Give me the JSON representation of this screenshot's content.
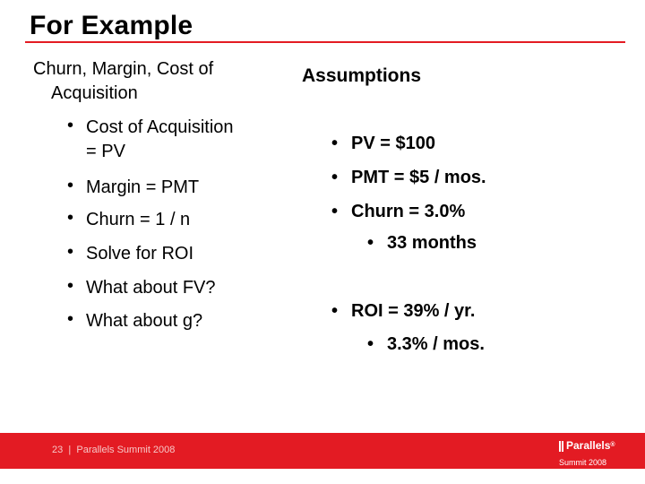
{
  "slide": {
    "title": "For Example",
    "left_heading_line1": "Churn, Margin, Cost of",
    "left_heading_line2": "Acquisition",
    "left_bullets": [
      {
        "line1": "Cost of Acquisition",
        "line2": "= PV"
      },
      {
        "line1": "Margin = PMT"
      },
      {
        "line1": "Churn = 1 / n"
      },
      {
        "line1": "Solve for ROI"
      },
      {
        "line1": "What about FV?"
      },
      {
        "line1": "What about g?"
      }
    ],
    "bullet_char": "•",
    "right_heading": "Assumptions",
    "right_bullets": [
      {
        "text": "PV = $100",
        "level": 1
      },
      {
        "text": "PMT = $5 / mos.",
        "level": 1
      },
      {
        "text": "Churn = 3.0%",
        "level": 1
      },
      {
        "text": "33 months",
        "level": 2
      },
      {
        "text": "ROI = 39% / yr.",
        "level": 1
      },
      {
        "text": "3.3% / mos.",
        "level": 2
      }
    ]
  },
  "footer": {
    "page_number": "23",
    "separator": "|",
    "event": "Parallels Summit 2008",
    "logo_brand": "Parallels",
    "logo_registered": "®",
    "logo_sub": "Summit 2008"
  },
  "colors": {
    "accent": "#e31b23",
    "footer_text": "#f7c6c6"
  }
}
